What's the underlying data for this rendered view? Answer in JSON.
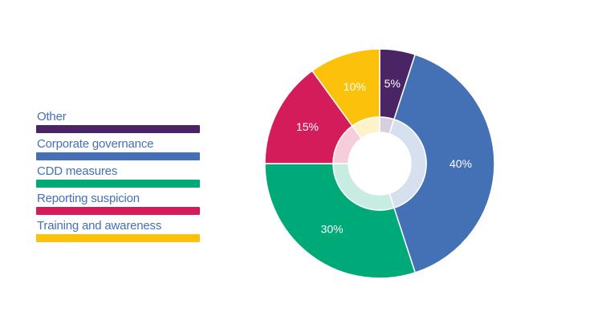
{
  "chart_data": {
    "type": "pie",
    "style": "donut",
    "legend_position": "left",
    "categories": [
      "Other",
      "Corporate governance",
      "CDD measures",
      "Reporting suspicion",
      "Training and awareness"
    ],
    "values": [
      5,
      40,
      30,
      15,
      10
    ],
    "labels": [
      "5%",
      "40%",
      "30%",
      "15%",
      "10%"
    ],
    "colors": [
      "#4b2466",
      "#4470b5",
      "#00a978",
      "#d51c5b",
      "#fcc20b"
    ]
  }
}
